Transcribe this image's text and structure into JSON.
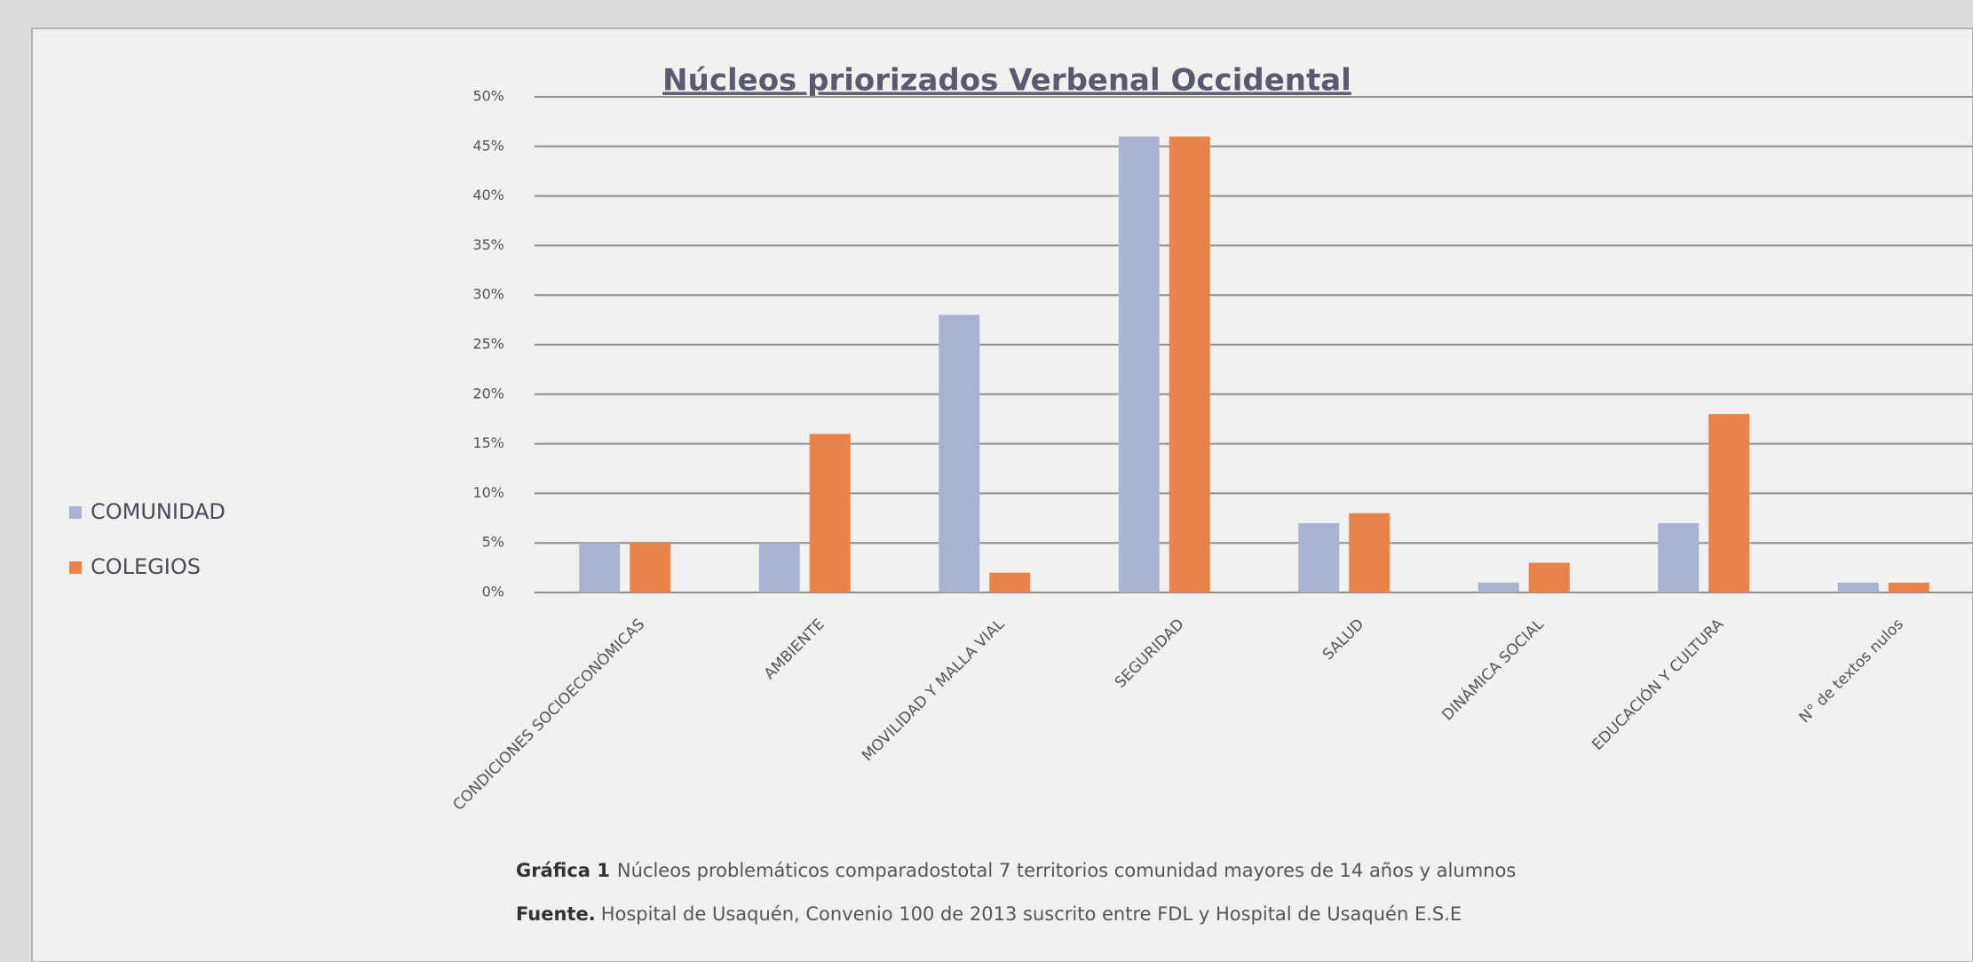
{
  "chart_data": {
    "type": "bar",
    "title": "Núcleos priorizados Verbenal Occidental",
    "categories": [
      "CONDICIONES SOCIOECONÓMICAS",
      "AMBIENTE",
      "MOVILIDAD Y MALLA VIAL",
      "SEGURIDAD",
      "SALUD",
      "DINÁMICA SOCIAL",
      "EDUCACIÓN Y CULTURA",
      "N° de textos nulos"
    ],
    "series": [
      {
        "name": "COMUNIDAD",
        "color": "#a9b3cf",
        "values": [
          5,
          5,
          28,
          46,
          7,
          1,
          7,
          1
        ]
      },
      {
        "name": "COLEGIOS",
        "color": "#e8834a",
        "values": [
          5,
          16,
          2,
          46,
          8,
          3,
          18,
          1
        ]
      }
    ],
    "ylim": [
      0,
      50
    ],
    "yticks": [
      {
        "value": 0,
        "label": "0%"
      },
      {
        "value": 5,
        "label": "5%"
      },
      {
        "value": 10,
        "label": "10%"
      },
      {
        "value": 15,
        "label": "15%"
      },
      {
        "value": 20,
        "label": "20%"
      },
      {
        "value": 25,
        "label": "25%"
      },
      {
        "value": 30,
        "label": "30%"
      },
      {
        "value": 35,
        "label": "35%"
      },
      {
        "value": 40,
        "label": "40%"
      },
      {
        "value": 45,
        "label": "45%"
      },
      {
        "value": 50,
        "label": "50%"
      }
    ],
    "grid": true,
    "legend": "left",
    "caption_label": "Gráfica 1",
    "caption_text": "Núcleos problemáticos comparadostotal 7 territorios  comunidad mayores de 14 años y alumnos",
    "source_label": "Fuente.",
    "source_text": "Hospital de Usaquén, Convenio 100 de 2013 suscrito entre FDL y Hospital de Usaquén E.S.E"
  }
}
